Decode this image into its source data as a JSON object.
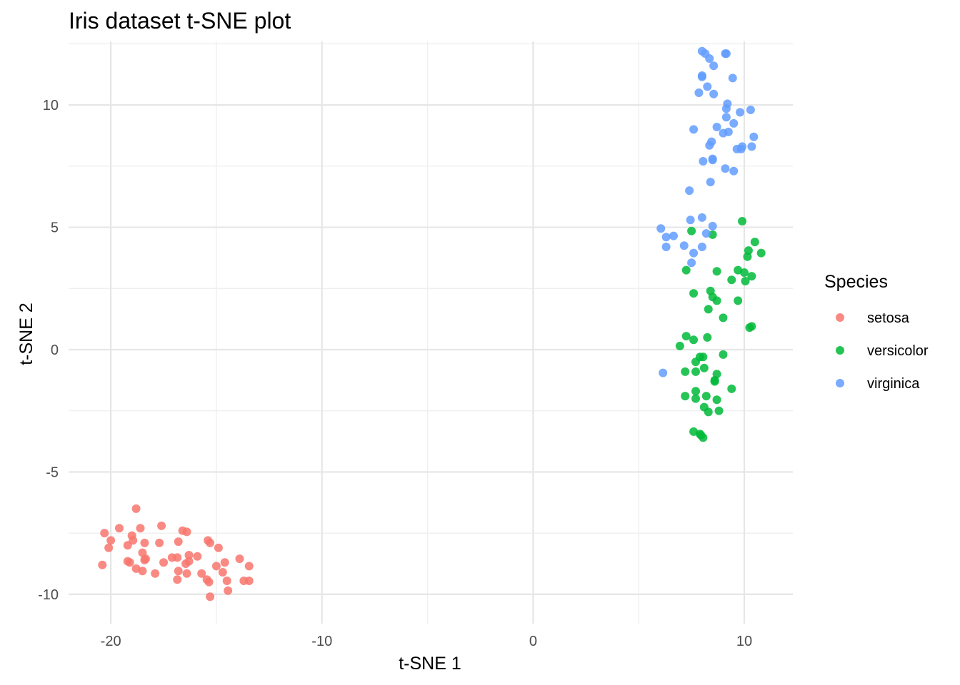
{
  "chart_data": {
    "type": "scatter",
    "title": "Iris dataset t-SNE plot",
    "xlabel": "t-SNE 1",
    "ylabel": "t-SNE 2",
    "xlim": [
      -22,
      12.3
    ],
    "ylim": [
      -11.2,
      12.6
    ],
    "x_ticks": [
      -20,
      -10,
      0,
      10
    ],
    "y_ticks": [
      -10,
      -5,
      0,
      5,
      10
    ],
    "grid": true,
    "legend": {
      "title": "Species",
      "position": "right"
    },
    "colors": {
      "setosa": "#F8766D",
      "versicolor": "#00BA38",
      "virginica": "#619CFF"
    },
    "series": [
      {
        "name": "setosa",
        "points": [
          [
            -18.8,
            -6.5
          ],
          [
            -20.3,
            -7.5
          ],
          [
            -19.6,
            -7.3
          ],
          [
            -18.6,
            -7.3
          ],
          [
            -17.6,
            -7.2
          ],
          [
            -16.6,
            -7.4
          ],
          [
            -16.4,
            -7.45
          ],
          [
            -20.0,
            -7.8
          ],
          [
            -19.0,
            -7.6
          ],
          [
            -18.95,
            -7.8
          ],
          [
            -18.4,
            -7.9
          ],
          [
            -17.7,
            -7.9
          ],
          [
            -16.8,
            -7.85
          ],
          [
            -15.4,
            -7.8
          ],
          [
            -15.3,
            -7.9
          ],
          [
            -19.2,
            -8.0
          ],
          [
            -20.1,
            -8.1
          ],
          [
            -18.5,
            -8.3
          ],
          [
            -17.1,
            -8.5
          ],
          [
            -16.85,
            -8.5
          ],
          [
            -16.3,
            -8.4
          ],
          [
            -15.9,
            -8.45
          ],
          [
            -14.9,
            -8.1
          ],
          [
            -20.4,
            -8.8
          ],
          [
            -19.2,
            -8.65
          ],
          [
            -19.1,
            -8.7
          ],
          [
            -18.4,
            -8.6
          ],
          [
            -18.35,
            -8.55
          ],
          [
            -17.5,
            -8.7
          ],
          [
            -16.45,
            -8.75
          ],
          [
            -16.3,
            -8.65
          ],
          [
            -15.0,
            -8.85
          ],
          [
            -14.6,
            -8.7
          ],
          [
            -13.9,
            -8.55
          ],
          [
            -13.45,
            -8.85
          ],
          [
            -18.8,
            -8.95
          ],
          [
            -18.5,
            -9.05
          ],
          [
            -17.9,
            -9.15
          ],
          [
            -16.8,
            -9.05
          ],
          [
            -16.4,
            -9.15
          ],
          [
            -15.7,
            -9.15
          ],
          [
            -14.7,
            -9.1
          ],
          [
            -16.85,
            -9.4
          ],
          [
            -15.45,
            -9.4
          ],
          [
            -15.35,
            -9.5
          ],
          [
            -14.5,
            -9.45
          ],
          [
            -13.7,
            -9.45
          ],
          [
            -13.45,
            -9.45
          ],
          [
            -14.45,
            -9.85
          ],
          [
            -15.3,
            -10.1
          ]
        ]
      },
      {
        "name": "versicolor",
        "points": [
          [
            9.9,
            5.25
          ],
          [
            10.5,
            4.4
          ],
          [
            7.5,
            4.85
          ],
          [
            8.5,
            4.7
          ],
          [
            10.2,
            4.05
          ],
          [
            10.8,
            3.95
          ],
          [
            10.15,
            3.8
          ],
          [
            7.25,
            3.25
          ],
          [
            8.7,
            3.2
          ],
          [
            9.7,
            3.25
          ],
          [
            10.0,
            3.15
          ],
          [
            10.35,
            3.0
          ],
          [
            9.4,
            2.85
          ],
          [
            10.05,
            2.8
          ],
          [
            8.4,
            2.4
          ],
          [
            7.6,
            2.3
          ],
          [
            8.5,
            2.15
          ],
          [
            8.7,
            2.0
          ],
          [
            9.7,
            2.0
          ],
          [
            8.3,
            1.65
          ],
          [
            9.0,
            1.3
          ],
          [
            10.35,
            0.95
          ],
          [
            10.25,
            0.9
          ],
          [
            7.25,
            0.55
          ],
          [
            7.6,
            0.4
          ],
          [
            8.25,
            0.5
          ],
          [
            6.95,
            0.15
          ],
          [
            7.7,
            -0.5
          ],
          [
            7.9,
            -0.3
          ],
          [
            8.05,
            -0.3
          ],
          [
            9.0,
            -0.2
          ],
          [
            7.2,
            -0.9
          ],
          [
            7.7,
            -0.9
          ],
          [
            8.1,
            -0.75
          ],
          [
            8.7,
            -1.0
          ],
          [
            8.6,
            -1.25
          ],
          [
            8.6,
            -1.3
          ],
          [
            9.4,
            -1.6
          ],
          [
            7.7,
            -1.7
          ],
          [
            7.2,
            -1.9
          ],
          [
            7.7,
            -2.0
          ],
          [
            8.2,
            -1.9
          ],
          [
            8.7,
            -2.05
          ],
          [
            8.1,
            -2.35
          ],
          [
            8.3,
            -2.55
          ],
          [
            8.8,
            -2.5
          ],
          [
            7.6,
            -3.35
          ],
          [
            7.9,
            -3.45
          ],
          [
            7.95,
            -3.5
          ],
          [
            8.05,
            -3.6
          ]
        ]
      },
      {
        "name": "virginica",
        "points": [
          [
            8.0,
            12.2
          ],
          [
            8.15,
            12.1
          ],
          [
            9.1,
            12.1
          ],
          [
            9.15,
            12.1
          ],
          [
            8.35,
            11.9
          ],
          [
            8.55,
            11.6
          ],
          [
            8.0,
            11.2
          ],
          [
            8.0,
            11.15
          ],
          [
            9.45,
            11.1
          ],
          [
            8.25,
            10.75
          ],
          [
            7.85,
            10.5
          ],
          [
            8.55,
            10.45
          ],
          [
            9.2,
            10.05
          ],
          [
            9.15,
            9.85
          ],
          [
            10.3,
            9.8
          ],
          [
            9.8,
            9.7
          ],
          [
            9.15,
            9.5
          ],
          [
            9.5,
            9.25
          ],
          [
            8.7,
            9.1
          ],
          [
            7.6,
            9.0
          ],
          [
            9.25,
            8.9
          ],
          [
            9.0,
            8.85
          ],
          [
            10.45,
            8.7
          ],
          [
            8.45,
            8.5
          ],
          [
            8.35,
            8.35
          ],
          [
            9.9,
            8.3
          ],
          [
            10.35,
            8.3
          ],
          [
            9.65,
            8.2
          ],
          [
            9.85,
            8.2
          ],
          [
            8.5,
            7.8
          ],
          [
            8.5,
            7.75
          ],
          [
            8.05,
            7.7
          ],
          [
            9.1,
            7.4
          ],
          [
            9.5,
            7.3
          ],
          [
            8.4,
            6.85
          ],
          [
            7.4,
            6.5
          ],
          [
            7.45,
            5.3
          ],
          [
            8.0,
            5.4
          ],
          [
            8.5,
            5.05
          ],
          [
            6.05,
            4.95
          ],
          [
            8.2,
            4.75
          ],
          [
            6.3,
            4.6
          ],
          [
            6.65,
            4.65
          ],
          [
            6.3,
            4.2
          ],
          [
            7.15,
            4.25
          ],
          [
            8.0,
            4.2
          ],
          [
            7.6,
            3.95
          ],
          [
            7.5,
            3.55
          ],
          [
            6.15,
            -0.95
          ]
        ]
      }
    ]
  }
}
